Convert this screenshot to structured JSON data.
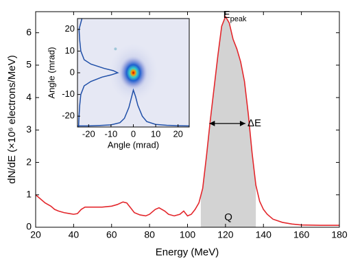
{
  "chart_data": {
    "type": "line",
    "xlabel": "Energy (MeV)",
    "ylabel": "dN/dE (×10⁶ electrons/MeV)",
    "x": [
      20,
      22,
      25,
      28,
      30,
      32,
      35,
      38,
      40,
      42,
      44,
      46,
      50,
      55,
      60,
      63,
      66,
      68,
      70,
      72,
      75,
      78,
      80,
      83,
      85,
      88,
      90,
      93,
      96,
      98,
      100,
      102,
      104,
      106,
      108,
      110,
      112,
      114,
      116,
      118,
      120,
      122,
      124,
      126,
      128,
      130,
      132,
      134,
      136,
      138,
      140,
      142,
      145,
      150,
      155,
      160,
      170,
      180
    ],
    "series": [
      {
        "color": "#e3262b",
        "values": [
          1.0,
          0.9,
          0.75,
          0.65,
          0.55,
          0.5,
          0.45,
          0.42,
          0.4,
          0.42,
          0.55,
          0.62,
          0.62,
          0.62,
          0.65,
          0.7,
          0.78,
          0.75,
          0.6,
          0.45,
          0.38,
          0.35,
          0.4,
          0.55,
          0.6,
          0.5,
          0.4,
          0.35,
          0.4,
          0.5,
          0.35,
          0.4,
          0.55,
          0.75,
          1.2,
          2.2,
          3.3,
          4.3,
          5.3,
          6.2,
          6.5,
          6.3,
          5.8,
          5.5,
          5.1,
          4.5,
          3.5,
          2.3,
          1.3,
          0.8,
          0.55,
          0.4,
          0.25,
          0.15,
          0.1,
          0.07,
          0.06,
          0.06
        ]
      }
    ],
    "xlim": [
      20,
      180
    ],
    "ylim": [
      0,
      6.65
    ],
    "xticks": [
      20,
      40,
      60,
      80,
      100,
      120,
      140,
      160,
      180
    ],
    "yticks": [
      0,
      1,
      2,
      3,
      4,
      5,
      6
    ],
    "shaded_range": [
      107,
      136
    ],
    "shade_color": "#d3d3d3",
    "annotations": {
      "peak": "E",
      "peak_sub": "peak",
      "width": "ΔE",
      "charge": "Q"
    },
    "inset": {
      "xlabel": "Angle (mrad)",
      "ylabel": "Angle (mrad)",
      "xlim": [
        -25,
        25
      ],
      "ylim": [
        -25,
        25
      ],
      "xticks": [
        -20,
        -10,
        0,
        10,
        20
      ],
      "yticks": [
        -20,
        -10,
        0,
        10,
        20
      ],
      "profile_color": "#1f4fa8",
      "horizontal_profile": {
        "x": [
          -25,
          -20,
          -15,
          -10,
          -6,
          -4,
          -2,
          -1,
          0,
          1,
          2,
          4,
          6,
          10,
          15,
          20,
          25
        ],
        "values": [
          -24.5,
          -24.5,
          -24.3,
          -24,
          -23,
          -21,
          -16,
          -12,
          -8,
          -11,
          -15,
          -20,
          -22.5,
          -23.8,
          -24.2,
          -24.4,
          -24.5
        ]
      },
      "vertical_profile": {
        "y": [
          -25,
          -20,
          -15,
          -10,
          -6,
          -4,
          -2,
          -1,
          0,
          1,
          2,
          4,
          6,
          10,
          15,
          20,
          25
        ],
        "values": [
          -24.5,
          -24.3,
          -24,
          -23.5,
          -22,
          -19,
          -14,
          -10,
          -7,
          -9,
          -13,
          -19,
          -22,
          -23.5,
          -24,
          -24.3,
          -23
        ]
      }
    }
  }
}
